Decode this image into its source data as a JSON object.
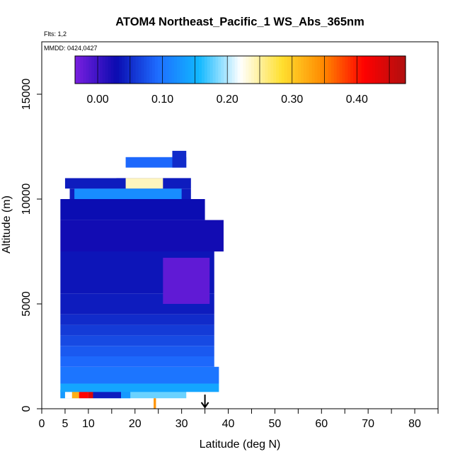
{
  "chart_data": {
    "type": "heatmap",
    "title": "ATOM4 Northeast_Pacific_1 WS_Abs_365nm",
    "subtitle_flights": "Flts: 1,2",
    "subtitle_dates": "MMDD: 0424,0427",
    "xlabel": "Latitude (deg N)",
    "ylabel": "Altitude (m)",
    "xlim": [
      0,
      85
    ],
    "ylim": [
      0,
      17500
    ],
    "x_ticks": [
      0,
      5,
      10,
      20,
      30,
      40,
      50,
      60,
      70,
      80
    ],
    "y_ticks": [
      0,
      5000,
      10000,
      15000
    ],
    "colorbar": {
      "min": -0.035,
      "max": 0.475,
      "ticks": [
        0.0,
        0.1,
        0.2,
        0.3,
        0.4
      ],
      "tick_labels": [
        "0.00",
        "0.10",
        "0.20",
        "0.30",
        "0.40"
      ],
      "colors": [
        "#7a1fe0",
        "#0b0bb0",
        "#1e6cff",
        "#11b8ff",
        "#ffffff",
        "#ffe030",
        "#ff8a00",
        "#ff0000",
        "#b01010"
      ]
    },
    "marker_latitude": 35,
    "cells": [
      {
        "lat0": 4,
        "lat1": 31,
        "alt0": 500,
        "alt1": 900,
        "value": 0.18
      },
      {
        "lat0": 4,
        "lat1": 5,
        "alt0": 500,
        "alt1": 900,
        "value": 0.13
      },
      {
        "lat0": 5,
        "lat1": 6.5,
        "alt0": 500,
        "alt1": 900,
        "value": 0.22
      },
      {
        "lat0": 6.5,
        "lat1": 8,
        "alt0": 500,
        "alt1": 900,
        "value": 0.32
      },
      {
        "lat0": 8,
        "lat1": 10,
        "alt0": 500,
        "alt1": 900,
        "value": 0.41
      },
      {
        "lat0": 10,
        "lat1": 11,
        "alt0": 500,
        "alt1": 900,
        "value": 0.44
      },
      {
        "lat0": 11,
        "lat1": 17,
        "alt0": 500,
        "alt1": 900,
        "value": 0.04
      },
      {
        "lat0": 17,
        "lat1": 19,
        "alt0": 500,
        "alt1": 900,
        "value": 0.13
      },
      {
        "lat0": 24,
        "lat1": 24.5,
        "alt0": 0,
        "alt1": 500,
        "value": 0.34
      },
      {
        "lat0": 4,
        "lat1": 38,
        "alt0": 800,
        "alt1": 1200,
        "value": 0.14
      },
      {
        "lat0": 4,
        "lat1": 38,
        "alt0": 1200,
        "alt1": 2000,
        "value": 0.1
      },
      {
        "lat0": 4,
        "lat1": 37,
        "alt0": 2000,
        "alt1": 2500,
        "value": 0.09
      },
      {
        "lat0": 4,
        "lat1": 37,
        "alt0": 2500,
        "alt1": 3000,
        "value": 0.08
      },
      {
        "lat0": 4,
        "lat1": 37,
        "alt0": 3000,
        "alt1": 3500,
        "value": 0.07
      },
      {
        "lat0": 4,
        "lat1": 37,
        "alt0": 3500,
        "alt1": 4000,
        "value": 0.06
      },
      {
        "lat0": 4,
        "lat1": 37,
        "alt0": 4000,
        "alt1": 4500,
        "value": 0.05
      },
      {
        "lat0": 4,
        "lat1": 37,
        "alt0": 4500,
        "alt1": 5500,
        "value": 0.04
      },
      {
        "lat0": 4,
        "lat1": 37,
        "alt0": 5500,
        "alt1": 7500,
        "value": 0.035
      },
      {
        "lat0": 4,
        "lat1": 39,
        "alt0": 7500,
        "alt1": 9000,
        "value": 0.025
      },
      {
        "lat0": 4,
        "lat1": 35,
        "alt0": 9000,
        "alt1": 10000,
        "value": 0.03
      },
      {
        "lat0": 26,
        "lat1": 36,
        "alt0": 5000,
        "alt1": 7200,
        "value": -0.02
      },
      {
        "lat0": 6,
        "lat1": 32,
        "alt0": 10000,
        "alt1": 10500,
        "value": 0.04
      },
      {
        "lat0": 7,
        "lat1": 30,
        "alt0": 10000,
        "alt1": 10500,
        "value": 0.12
      },
      {
        "lat0": 5,
        "lat1": 32,
        "alt0": 10500,
        "alt1": 11000,
        "value": 0.04
      },
      {
        "lat0": 5,
        "lat1": 16,
        "alt0": 11000,
        "alt1": 11500,
        "value": 0.22
      },
      {
        "lat0": 18,
        "lat1": 26,
        "alt0": 10500,
        "alt1": 11000,
        "value": 0.24
      },
      {
        "lat0": 18,
        "lat1": 31,
        "alt0": 11500,
        "alt1": 12000,
        "value": 0.09
      },
      {
        "lat0": 28,
        "lat1": 31,
        "alt0": 11500,
        "alt1": 12300,
        "value": 0.05
      }
    ]
  }
}
